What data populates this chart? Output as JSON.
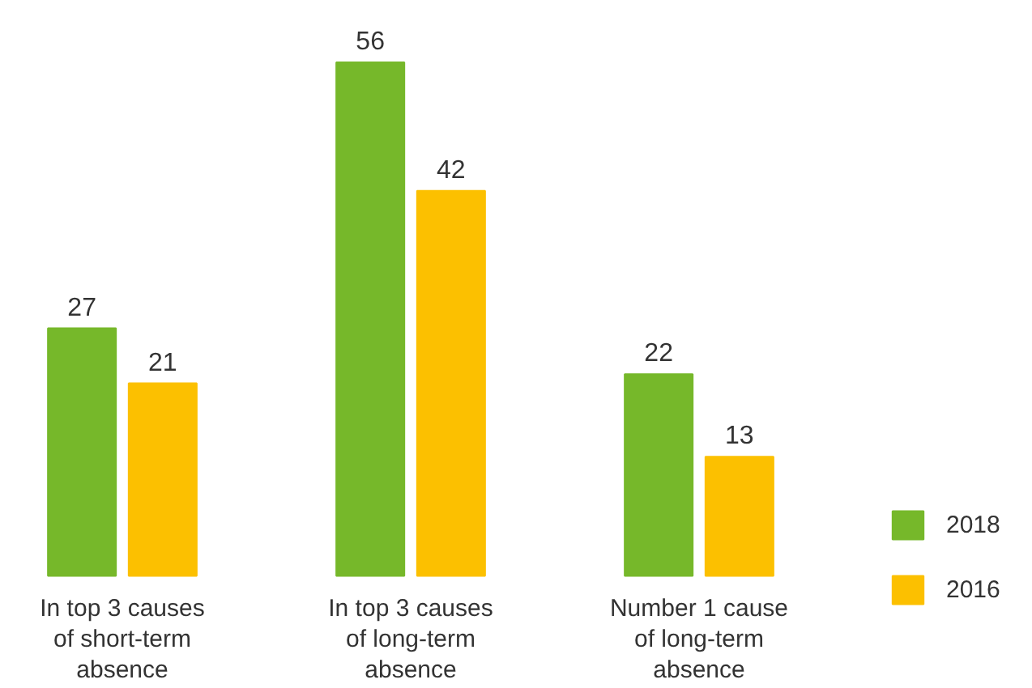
{
  "chart_data": {
    "type": "bar",
    "categories": [
      "In top 3 causes of short-term absence",
      "In top 3 causes of long-term absence",
      "Number 1 cause of long-term absence"
    ],
    "series": [
      {
        "name": "2018",
        "color": "#76b82a",
        "values": [
          27,
          56,
          22
        ]
      },
      {
        "name": "2016",
        "color": "#fcc000",
        "values": [
          21,
          42,
          13
        ]
      }
    ],
    "data_labels": true,
    "legend": "right",
    "grid": false
  }
}
